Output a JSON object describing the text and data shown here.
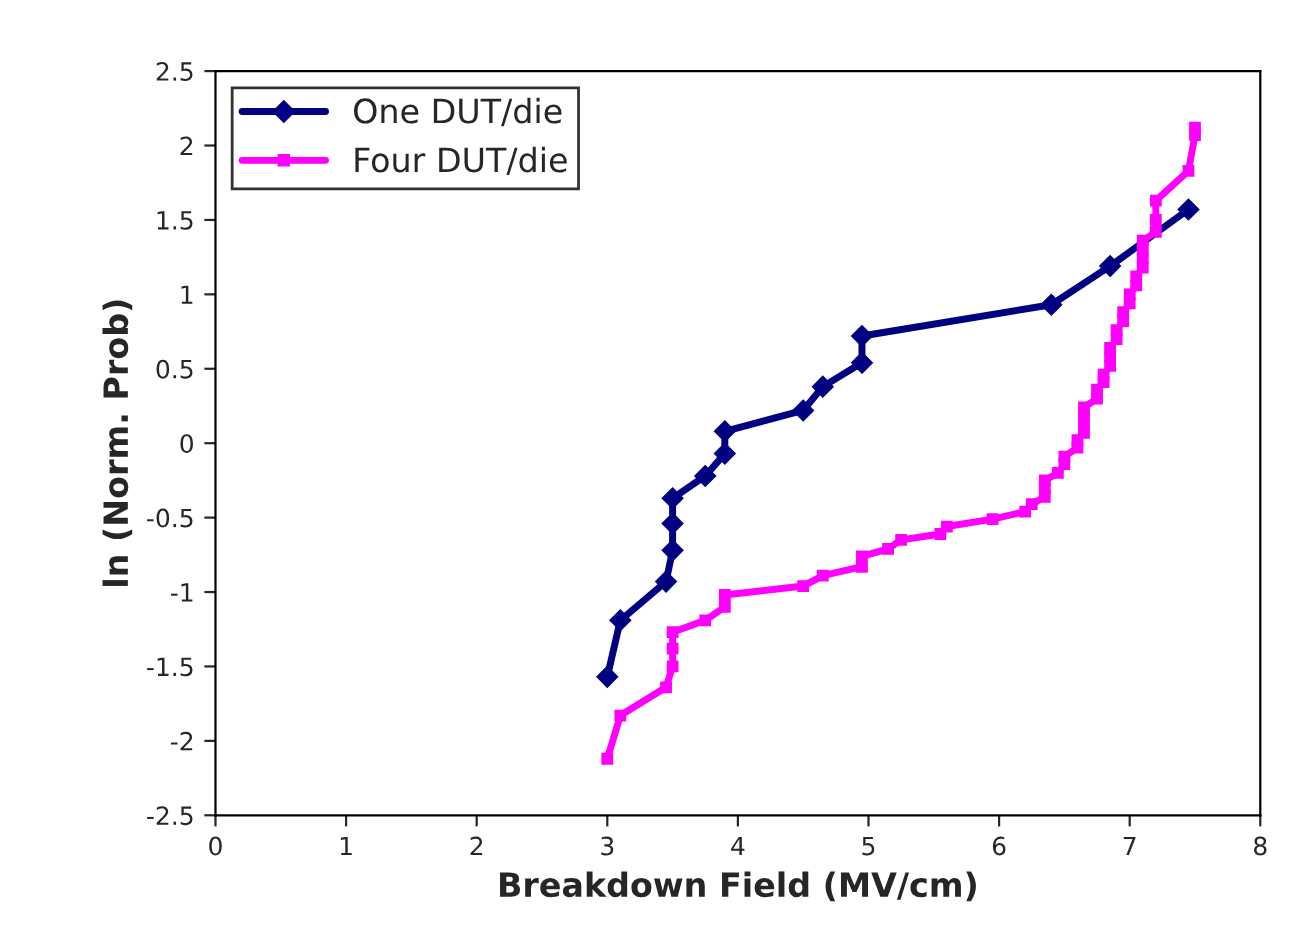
{
  "chart_data": {
    "type": "line",
    "xlabel": "Breakdown Field (MV/cm)",
    "ylabel": "ln (Norm. Prob)",
    "xlim": [
      0,
      8
    ],
    "xticks": [
      0,
      1,
      2,
      3,
      4,
      5,
      6,
      7,
      8
    ],
    "ylim": [
      -2.5,
      2.5
    ],
    "yticks": [
      -2.5,
      -2,
      -1.5,
      -1,
      -0.5,
      0,
      0.5,
      1,
      1.5,
      2,
      2.5
    ],
    "grid": false,
    "legend": "top left",
    "series": [
      {
        "name": "One DUT/die",
        "color": "#000080",
        "marker": "diamond",
        "x": [
          3.0,
          3.1,
          3.45,
          3.5,
          3.5,
          3.5,
          3.75,
          3.9,
          3.9,
          4.5,
          4.65,
          4.95,
          4.95,
          6.4,
          6.85,
          7.45
        ],
        "values": [
          -1.57,
          -1.19,
          -0.93,
          -0.72,
          -0.54,
          -0.37,
          -0.22,
          -0.07,
          0.08,
          0.22,
          0.38,
          0.54,
          0.72,
          0.93,
          1.19,
          1.57
        ]
      },
      {
        "name": "Four DUT/die",
        "color": "#ff00ff",
        "marker": "square",
        "x": [
          3.0,
          3.1,
          3.45,
          3.5,
          3.5,
          3.5,
          3.75,
          3.9,
          3.9,
          4.5,
          4.65,
          4.95,
          4.95,
          5.15,
          5.25,
          5.55,
          5.6,
          5.95,
          6.2,
          6.25,
          6.35,
          6.35,
          6.35,
          6.45,
          6.5,
          6.5,
          6.6,
          6.6,
          6.65,
          6.65,
          6.65,
          6.65,
          6.75,
          6.75,
          6.8,
          6.8,
          6.85,
          6.85,
          6.85,
          6.9,
          6.9,
          6.95,
          6.95,
          7.0,
          7.0,
          7.05,
          7.05,
          7.1,
          7.1,
          7.1,
          7.1,
          7.2,
          7.2,
          7.2,
          7.45,
          7.5,
          7.5
        ],
        "values": [
          -2.12,
          -1.83,
          -1.64,
          -1.5,
          -1.38,
          -1.27,
          -1.19,
          -1.1,
          -1.02,
          -0.96,
          -0.89,
          -0.83,
          -0.76,
          -0.71,
          -0.65,
          -0.61,
          -0.56,
          -0.51,
          -0.46,
          -0.41,
          -0.36,
          -0.3,
          -0.25,
          -0.2,
          -0.14,
          -0.09,
          -0.03,
          0.02,
          0.07,
          0.13,
          0.19,
          0.24,
          0.3,
          0.36,
          0.41,
          0.46,
          0.52,
          0.58,
          0.64,
          0.7,
          0.76,
          0.82,
          0.88,
          0.94,
          1.0,
          1.06,
          1.12,
          1.18,
          1.24,
          1.3,
          1.36,
          1.42,
          1.5,
          1.63,
          1.83,
          2.07,
          2.12
        ]
      }
    ]
  }
}
